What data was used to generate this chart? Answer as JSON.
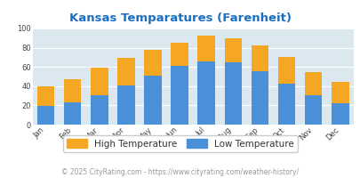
{
  "title": "Kansas Temparatures (Farenheit)",
  "months": [
    "Jan",
    "Feb",
    "Mar",
    "Apr",
    "May",
    "Jun",
    "Jul",
    "Aug",
    "Sep",
    "Oct",
    "Nov",
    "Dec"
  ],
  "low_temps": [
    19,
    23,
    31,
    41,
    51,
    61,
    66,
    65,
    56,
    43,
    31,
    22
  ],
  "high_temps": [
    40,
    47,
    59,
    69,
    78,
    85,
    93,
    90,
    82,
    70,
    55,
    44
  ],
  "low_color": "#4a90d9",
  "high_color": "#f5a623",
  "bg_color": "#dce8f0",
  "title_color": "#1a6fc4",
  "ylim": [
    0,
    100
  ],
  "yticks": [
    0,
    20,
    40,
    60,
    80,
    100
  ],
  "legend_low": "Low Temperature",
  "legend_high": "High Temperature",
  "footer": "© 2025 CityRating.com - https://www.cityrating.com/weather-history/",
  "footer_color": "#999999",
  "title_fontsize": 9.5,
  "tick_fontsize": 6,
  "legend_fontsize": 7.5,
  "footer_fontsize": 5.5,
  "legend_text_color": "#333333"
}
